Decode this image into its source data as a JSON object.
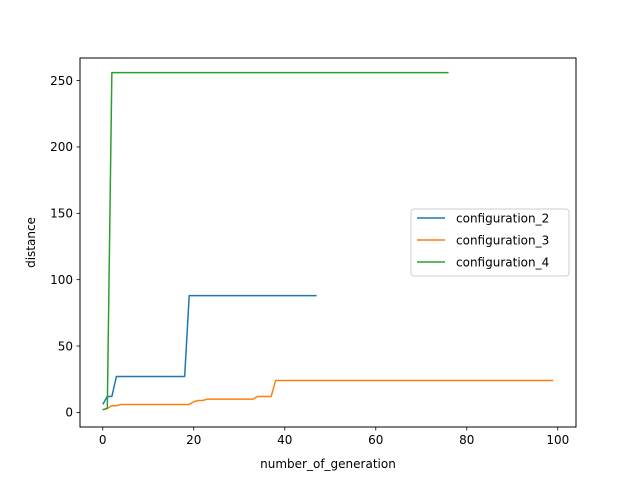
{
  "chart_data": {
    "type": "line",
    "title": "",
    "xlabel": "number_of_generation",
    "ylabel": "distance",
    "xlim": [
      -5,
      104
    ],
    "ylim": [
      -11,
      267
    ],
    "xticks": [
      0,
      20,
      40,
      60,
      80,
      100
    ],
    "yticks": [
      0,
      50,
      100,
      150,
      200,
      250
    ],
    "grid": false,
    "legend_position": "center-right",
    "series": [
      {
        "name": "configuration_2",
        "color": "#1f77b4",
        "x": [
          0,
          1,
          2,
          3,
          18,
          19,
          47
        ],
        "y": [
          6,
          12,
          12,
          27,
          27,
          88,
          88
        ]
      },
      {
        "name": "configuration_3",
        "color": "#ff7f0e",
        "x": [
          0,
          1,
          2,
          3,
          4,
          5,
          19,
          20,
          21,
          22,
          23,
          27,
          28,
          33,
          34,
          37,
          38,
          99
        ],
        "y": [
          2,
          3,
          5,
          5,
          6,
          6,
          6,
          8,
          9,
          9,
          10,
          10,
          10,
          10,
          12,
          12,
          24,
          24
        ]
      },
      {
        "name": "configuration_4",
        "color": "#2ca02c",
        "x": [
          0,
          1,
          2,
          76
        ],
        "y": [
          2,
          3,
          256,
          256
        ]
      }
    ]
  }
}
